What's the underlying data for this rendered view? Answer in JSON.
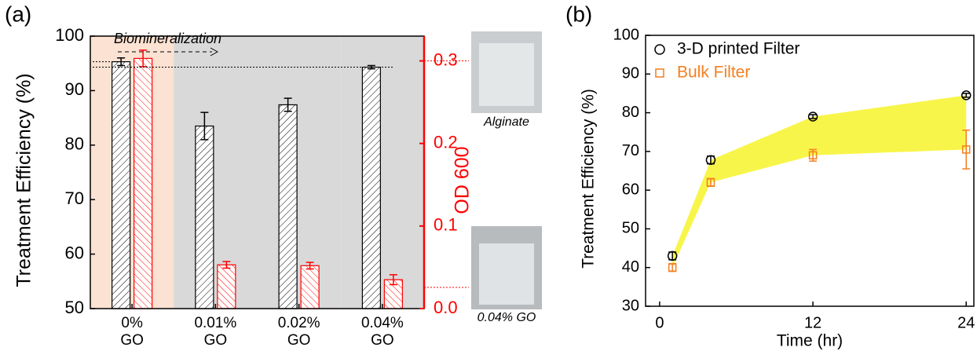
{
  "chart_data": [
    {
      "type": "bar",
      "panel_label": "(a)",
      "categories": [
        "0%\nGO",
        "0.01%\nGO",
        "0.02%\nGO",
        "0.04%\nGO"
      ],
      "category_backgrounds": [
        "#fbe2d2",
        "#d9d9d9",
        "#d9d9d9",
        "#d9d9d9"
      ],
      "ylabel": "Treatment Efficiency (%)",
      "y2label": "OD 600",
      "ylim": [
        50,
        100
      ],
      "yticks": [
        50,
        60,
        70,
        80,
        90,
        100
      ],
      "y2lim": [
        0,
        0.33
      ],
      "y2ticks": [
        {
          "value": 0,
          "label": "0.0"
        },
        0.1,
        0.2,
        0.3
      ],
      "series": [
        {
          "color": "#000000",
          "values": [
            95.3,
            83.5,
            87.4,
            94.3
          ],
          "errors": [
            0.7,
            2.5,
            1.2,
            0.3
          ]
        },
        {
          "color": "#ff0000",
          "axis": "y2",
          "values": [
            0.303,
            0.053,
            0.052,
            0.035
          ],
          "errors": [
            0.01,
            0.004,
            0.004,
            0.006
          ]
        }
      ],
      "annotations": [
        "Biomineralization",
        "Alginate",
        "0.04% GO"
      ]
    },
    {
      "type": "scatter",
      "panel_label": "(b)",
      "xlabel": "Time (hr)",
      "ylabel": "Treatment Efficiency (%)",
      "x": [
        1,
        4,
        12,
        24
      ],
      "xlim": [
        -1.1,
        24.6
      ],
      "xticks": [
        0,
        12,
        24
      ],
      "ylim": [
        30,
        100
      ],
      "yticks": [
        30,
        40,
        50,
        60,
        70,
        80,
        90,
        100
      ],
      "fill_between_color": "#f8f54a",
      "series": [
        {
          "name": "3-D printed Filter",
          "color": "#000000",
          "marker": "circle",
          "values": [
            43,
            67.8,
            79,
            84.5
          ],
          "errors": [
            1,
            1,
            0.5,
            0.5
          ]
        },
        {
          "name": "Bulk Filter",
          "color": "#f47f1f",
          "marker": "square",
          "values": [
            40,
            62,
            69,
            70.5
          ],
          "errors": [
            1,
            1,
            1.5,
            5
          ]
        }
      ],
      "legend": "upper left"
    }
  ]
}
